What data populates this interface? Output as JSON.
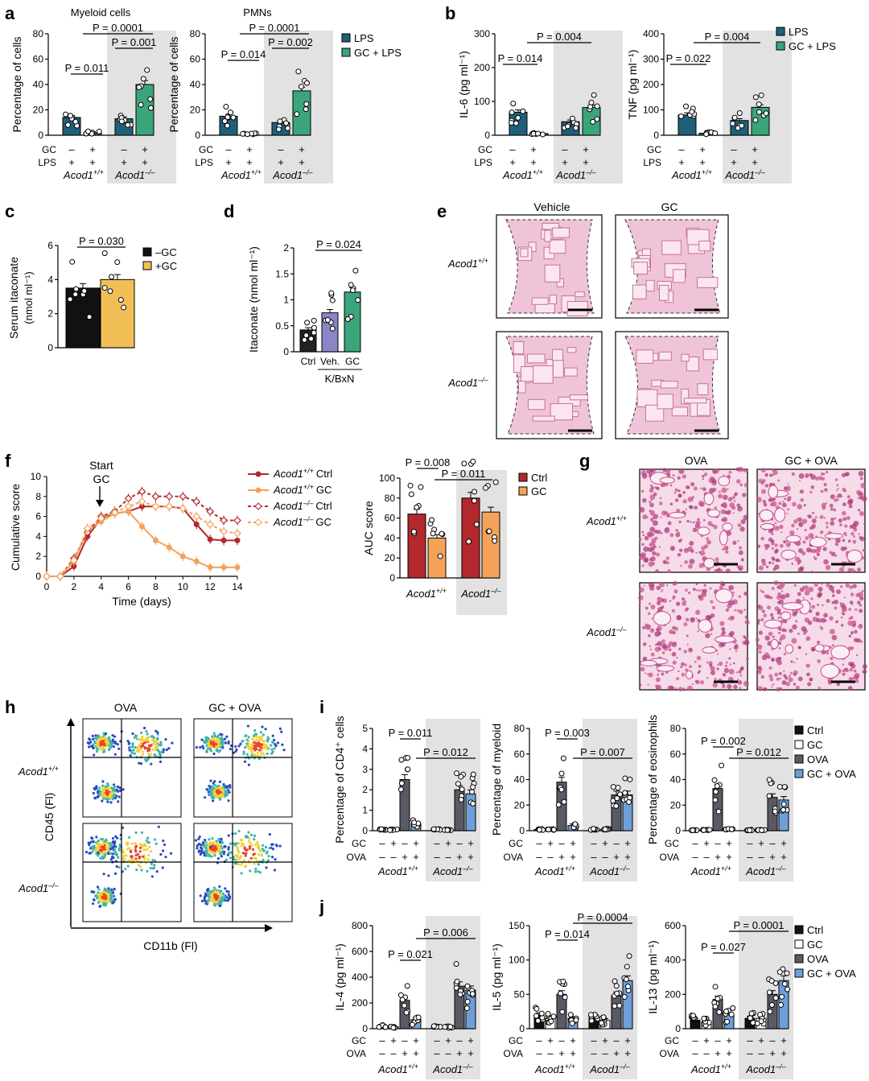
{
  "figure": {
    "panels": {
      "a": "a",
      "b": "b",
      "c": "c",
      "d": "d",
      "e": "e",
      "f": "f",
      "g": "g",
      "h": "h",
      "i": "i",
      "j": "j"
    },
    "genotypes": {
      "wt": "Acod1",
      "wt_sup": "+/+",
      "ko": "Acod1",
      "ko_sup": "–/–"
    },
    "row_labels": {
      "gc": "GC",
      "lps": "LPS",
      "ova": "OVA",
      "plus": "+",
      "minus": "–"
    }
  },
  "panel_a": {
    "legend": [
      "LPS",
      "GC + LPS"
    ],
    "colors": {
      "lps": "#1f6078",
      "gclps": "#3aa57a",
      "shade": "#e0e0e0"
    },
    "subpanels": [
      {
        "title": "Myeloid cells",
        "ylabel": "Percentage of cells",
        "pvals": [
          "P = 0.011",
          "P = 0.0001",
          "P = 0.001"
        ]
      },
      {
        "title": "PMNs",
        "ylabel": "Percentage of cells",
        "pvals": [
          "P = 0.014",
          "P = 0.0001",
          "P = 0.002"
        ]
      }
    ]
  },
  "panel_b": {
    "legend": [
      "LPS",
      "GC + LPS"
    ],
    "subpanels": [
      {
        "ylabel": "IL-6 (pg ml⁻¹)",
        "pvals": [
          "P = 0.014",
          "P = 0.004"
        ]
      },
      {
        "ylabel": "TNF (pg ml⁻¹)",
        "pvals": [
          "P = 0.022",
          "P = 0.004"
        ]
      }
    ]
  },
  "panel_c": {
    "ylabel1": "Serum itaconate",
    "ylabel2": "(nmol ml⁻¹)",
    "legend": [
      "–GC",
      "+GC"
    ],
    "pval": "P = 0.030",
    "colors": {
      "neg": "#111111",
      "pos": "#f2bf57"
    }
  },
  "panel_d": {
    "ylabel": "Itaconate (nmol ml⁻¹)",
    "categories": [
      "Ctrl",
      "Veh.",
      "GC"
    ],
    "group": "K/BxN",
    "pval": "P = 0.024",
    "colors": [
      "#222222",
      "#8a86c9",
      "#3aa57a"
    ]
  },
  "panel_e": {
    "columns": [
      "Vehicle",
      "GC"
    ]
  },
  "panel_f": {
    "start_label1": "Start",
    "start_label2": "GC",
    "ylabel": "Cumulative score",
    "xlabel": "Time (days)",
    "legend": [
      {
        "geno": "Acod1",
        "sup": "+/+",
        "cond": "Ctrl",
        "color": "#b3282d",
        "dashed": false
      },
      {
        "geno": "Acod1",
        "sup": "+/+",
        "cond": "GC",
        "color": "#f4a259",
        "dashed": false
      },
      {
        "geno": "Acod1",
        "sup": "–/–",
        "cond": "Ctrl",
        "color": "#b3282d",
        "dashed": true
      },
      {
        "geno": "Acod1",
        "sup": "–/–",
        "cond": "GC",
        "color": "#f4a259",
        "dashed": true
      }
    ],
    "auc": {
      "ylabel": "AUC score",
      "legend": [
        "Ctrl",
        "GC"
      ],
      "pvals": [
        "P = 0.008",
        "P = 0.011"
      ]
    }
  },
  "panel_g": {
    "columns": [
      "OVA",
      "GC + OVA"
    ]
  },
  "panel_h": {
    "columns": [
      "OVA",
      "GC + OVA"
    ],
    "ylabel": "CD45 (Fl)",
    "xlabel": "CD11b (Fl)"
  },
  "panel_i": {
    "legend": [
      "Ctrl",
      "GC",
      "OVA",
      "GC + OVA"
    ],
    "colors": {
      "ctrl": "#111111",
      "gc": "#ffffff",
      "ova": "#5a5a66",
      "gcova": "#6f9fd8"
    },
    "subpanels": [
      {
        "ylabel": "Percentage of CD4⁺ cells",
        "pvals": [
          "P = 0.011",
          "P = 0.012"
        ]
      },
      {
        "ylabel": "Percentage of myeloid",
        "pvals": [
          "P = 0.003",
          "P = 0.007"
        ]
      },
      {
        "ylabel": "Percentage of eosinophils",
        "pvals": [
          "P = 0.002",
          "P = 0.012"
        ]
      }
    ]
  },
  "panel_j": {
    "legend": [
      "Ctrl",
      "GC",
      "OVA",
      "GC + OVA"
    ],
    "subpanels": [
      {
        "ylabel": "IL-4 (pg ml⁻¹)",
        "pvals": [
          "P = 0.021",
          "P = 0.006"
        ]
      },
      {
        "ylabel": "IL-5 (pg ml⁻¹)",
        "pvals": [
          "P = 0.014",
          "P = 0.0004"
        ]
      },
      {
        "ylabel": "IL-13 (pg ml⁻¹)",
        "pvals": [
          "P = 0.027",
          "P = 0.0001"
        ]
      }
    ]
  },
  "chart_data": [
    {
      "panel": "a1",
      "type": "bar",
      "title": "Myeloid cells",
      "ylabel": "Percentage of cells",
      "ylim": [
        0,
        80
      ],
      "yticks": [
        0,
        20,
        40,
        60,
        80
      ],
      "categories": [
        "Acod1+/+ LPS",
        "Acod1+/+ GC+LPS",
        "Acod1–/– LPS",
        "Acod1–/– GC+LPS"
      ],
      "values": [
        14,
        2,
        13,
        40
      ]
    },
    {
      "panel": "a2",
      "type": "bar",
      "title": "PMNs",
      "ylabel": "Percentage of cells",
      "ylim": [
        0,
        80
      ],
      "yticks": [
        0,
        20,
        40,
        60,
        80
      ],
      "categories": [
        "Acod1+/+ LPS",
        "Acod1+/+ GC+LPS",
        "Acod1–/– LPS",
        "Acod1–/– GC+LPS"
      ],
      "values": [
        15,
        1,
        10,
        35
      ]
    },
    {
      "panel": "b1",
      "type": "bar",
      "ylabel": "IL-6 (pg ml⁻¹)",
      "ylim": [
        0,
        300
      ],
      "yticks": [
        0,
        100,
        200,
        300
      ],
      "categories": [
        "Acod1+/+ LPS",
        "Acod1+/+ GC+LPS",
        "Acod1–/– LPS",
        "Acod1–/– GC+LPS"
      ],
      "values": [
        68,
        5,
        40,
        82
      ]
    },
    {
      "panel": "b2",
      "type": "bar",
      "ylabel": "TNF (pg ml⁻¹)",
      "ylim": [
        0,
        400
      ],
      "yticks": [
        0,
        100,
        200,
        300,
        400
      ],
      "categories": [
        "Acod1+/+ LPS",
        "Acod1+/+ GC+LPS",
        "Acod1–/– LPS",
        "Acod1–/– GC+LPS"
      ],
      "values": [
        80,
        8,
        58,
        110
      ]
    },
    {
      "panel": "c",
      "type": "bar",
      "ylim": [
        0,
        6
      ],
      "yticks": [
        0,
        2,
        4,
        6
      ],
      "categories": [
        "–GC",
        "+GC"
      ],
      "values": [
        3.5,
        4.0
      ]
    },
    {
      "panel": "d",
      "type": "bar",
      "ylim": [
        0,
        2.0
      ],
      "yticks": [
        0,
        0.5,
        1.0,
        1.5,
        2.0
      ],
      "categories": [
        "Ctrl",
        "Veh.",
        "GC"
      ],
      "values": [
        0.42,
        0.75,
        1.15
      ]
    },
    {
      "panel": "f_line",
      "type": "line",
      "xlim": [
        0,
        14
      ],
      "ylim": [
        0,
        10
      ],
      "x": [
        0,
        1,
        2,
        3,
        4,
        5,
        6,
        7,
        8,
        9,
        10,
        11,
        12,
        13,
        14
      ],
      "series": [
        {
          "name": "Acod1+/+ Ctrl",
          "values": [
            0,
            0,
            1.0,
            4.0,
            5.8,
            6.3,
            6.5,
            7.0,
            7.0,
            7.0,
            6.8,
            5.2,
            3.7,
            3.6,
            3.6
          ]
        },
        {
          "name": "Acod1+/+ GC",
          "values": [
            0,
            0,
            1.5,
            4.6,
            5.5,
            6.3,
            6.5,
            5.0,
            3.6,
            2.9,
            2.0,
            1.5,
            0.9,
            0.9,
            0.9
          ]
        },
        {
          "name": "Acod1–/– Ctrl",
          "values": [
            0,
            0,
            1.8,
            4.4,
            6.0,
            6.5,
            7.8,
            8.5,
            8.0,
            8.0,
            8.0,
            7.5,
            6.5,
            5.6,
            5.6
          ]
        },
        {
          "name": "Acod1–/– GC",
          "values": [
            0,
            0,
            1.6,
            4.8,
            5.8,
            6.4,
            7.0,
            7.5,
            7.0,
            7.0,
            6.8,
            6.0,
            5.2,
            4.5,
            4.3
          ]
        }
      ]
    },
    {
      "panel": "f_auc",
      "type": "bar",
      "ylabel": "AUC score",
      "ylim": [
        0,
        100
      ],
      "yticks": [
        0,
        20,
        40,
        60,
        80,
        100
      ],
      "categories": [
        "Acod1+/+ Ctrl",
        "Acod1+/+ GC",
        "Acod1–/– Ctrl",
        "Acod1–/– GC"
      ],
      "values": [
        64,
        40,
        80,
        66
      ]
    },
    {
      "panel": "i1",
      "type": "bar",
      "ylabel": "Percentage of CD4⁺ cells",
      "ylim": [
        0,
        5
      ],
      "yticks": [
        0,
        1,
        2,
        3,
        4,
        5
      ],
      "series": [
        {
          "name": "Acod1+/+",
          "values": [
            0.05,
            0.05,
            2.5,
            0.35
          ]
        },
        {
          "name": "Acod1–/–",
          "values": [
            0.05,
            0.05,
            2.0,
            1.8
          ]
        }
      ]
    },
    {
      "panel": "i2",
      "type": "bar",
      "ylabel": "Percentage of myeloid",
      "ylim": [
        0,
        80
      ],
      "yticks": [
        0,
        20,
        40,
        60,
        80
      ],
      "series": [
        {
          "name": "Acod1+/+",
          "values": [
            1,
            1,
            38,
            4
          ]
        },
        {
          "name": "Acod1–/–",
          "values": [
            1,
            1,
            28,
            28
          ]
        }
      ]
    },
    {
      "panel": "i3",
      "type": "bar",
      "ylabel": "Percentage of eosinophils",
      "ylim": [
        0,
        80
      ],
      "yticks": [
        0,
        20,
        40,
        60,
        80
      ],
      "series": [
        {
          "name": "Acod1+/+",
          "values": [
            0.5,
            0.5,
            33,
            1
          ]
        },
        {
          "name": "Acod1–/–",
          "values": [
            0.5,
            0.5,
            26,
            24
          ]
        }
      ]
    },
    {
      "panel": "j1",
      "type": "bar",
      "ylabel": "IL-4 (pg ml⁻¹)",
      "ylim": [
        0,
        800
      ],
      "yticks": [
        0,
        200,
        400,
        600,
        800
      ],
      "series": [
        {
          "name": "Acod1+/+",
          "values": [
            20,
            15,
            220,
            70
          ]
        },
        {
          "name": "Acod1–/–",
          "values": [
            15,
            15,
            330,
            300
          ]
        }
      ]
    },
    {
      "panel": "j2",
      "type": "bar",
      "ylabel": "IL-5 (pg ml⁻¹)",
      "ylim": [
        0,
        150
      ],
      "yticks": [
        0,
        50,
        100,
        150
      ],
      "series": [
        {
          "name": "Acod1+/+",
          "values": [
            20,
            15,
            50,
            15
          ]
        },
        {
          "name": "Acod1–/–",
          "values": [
            15,
            12,
            48,
            70
          ]
        }
      ]
    },
    {
      "panel": "j3",
      "type": "bar",
      "ylabel": "IL-13 (pg ml⁻¹)",
      "ylim": [
        0,
        600
      ],
      "yticks": [
        0,
        200,
        400,
        600
      ],
      "series": [
        {
          "name": "Acod1+/+",
          "values": [
            50,
            40,
            170,
            80
          ]
        },
        {
          "name": "Acod1–/–",
          "values": [
            60,
            60,
            200,
            280
          ]
        }
      ]
    }
  ]
}
